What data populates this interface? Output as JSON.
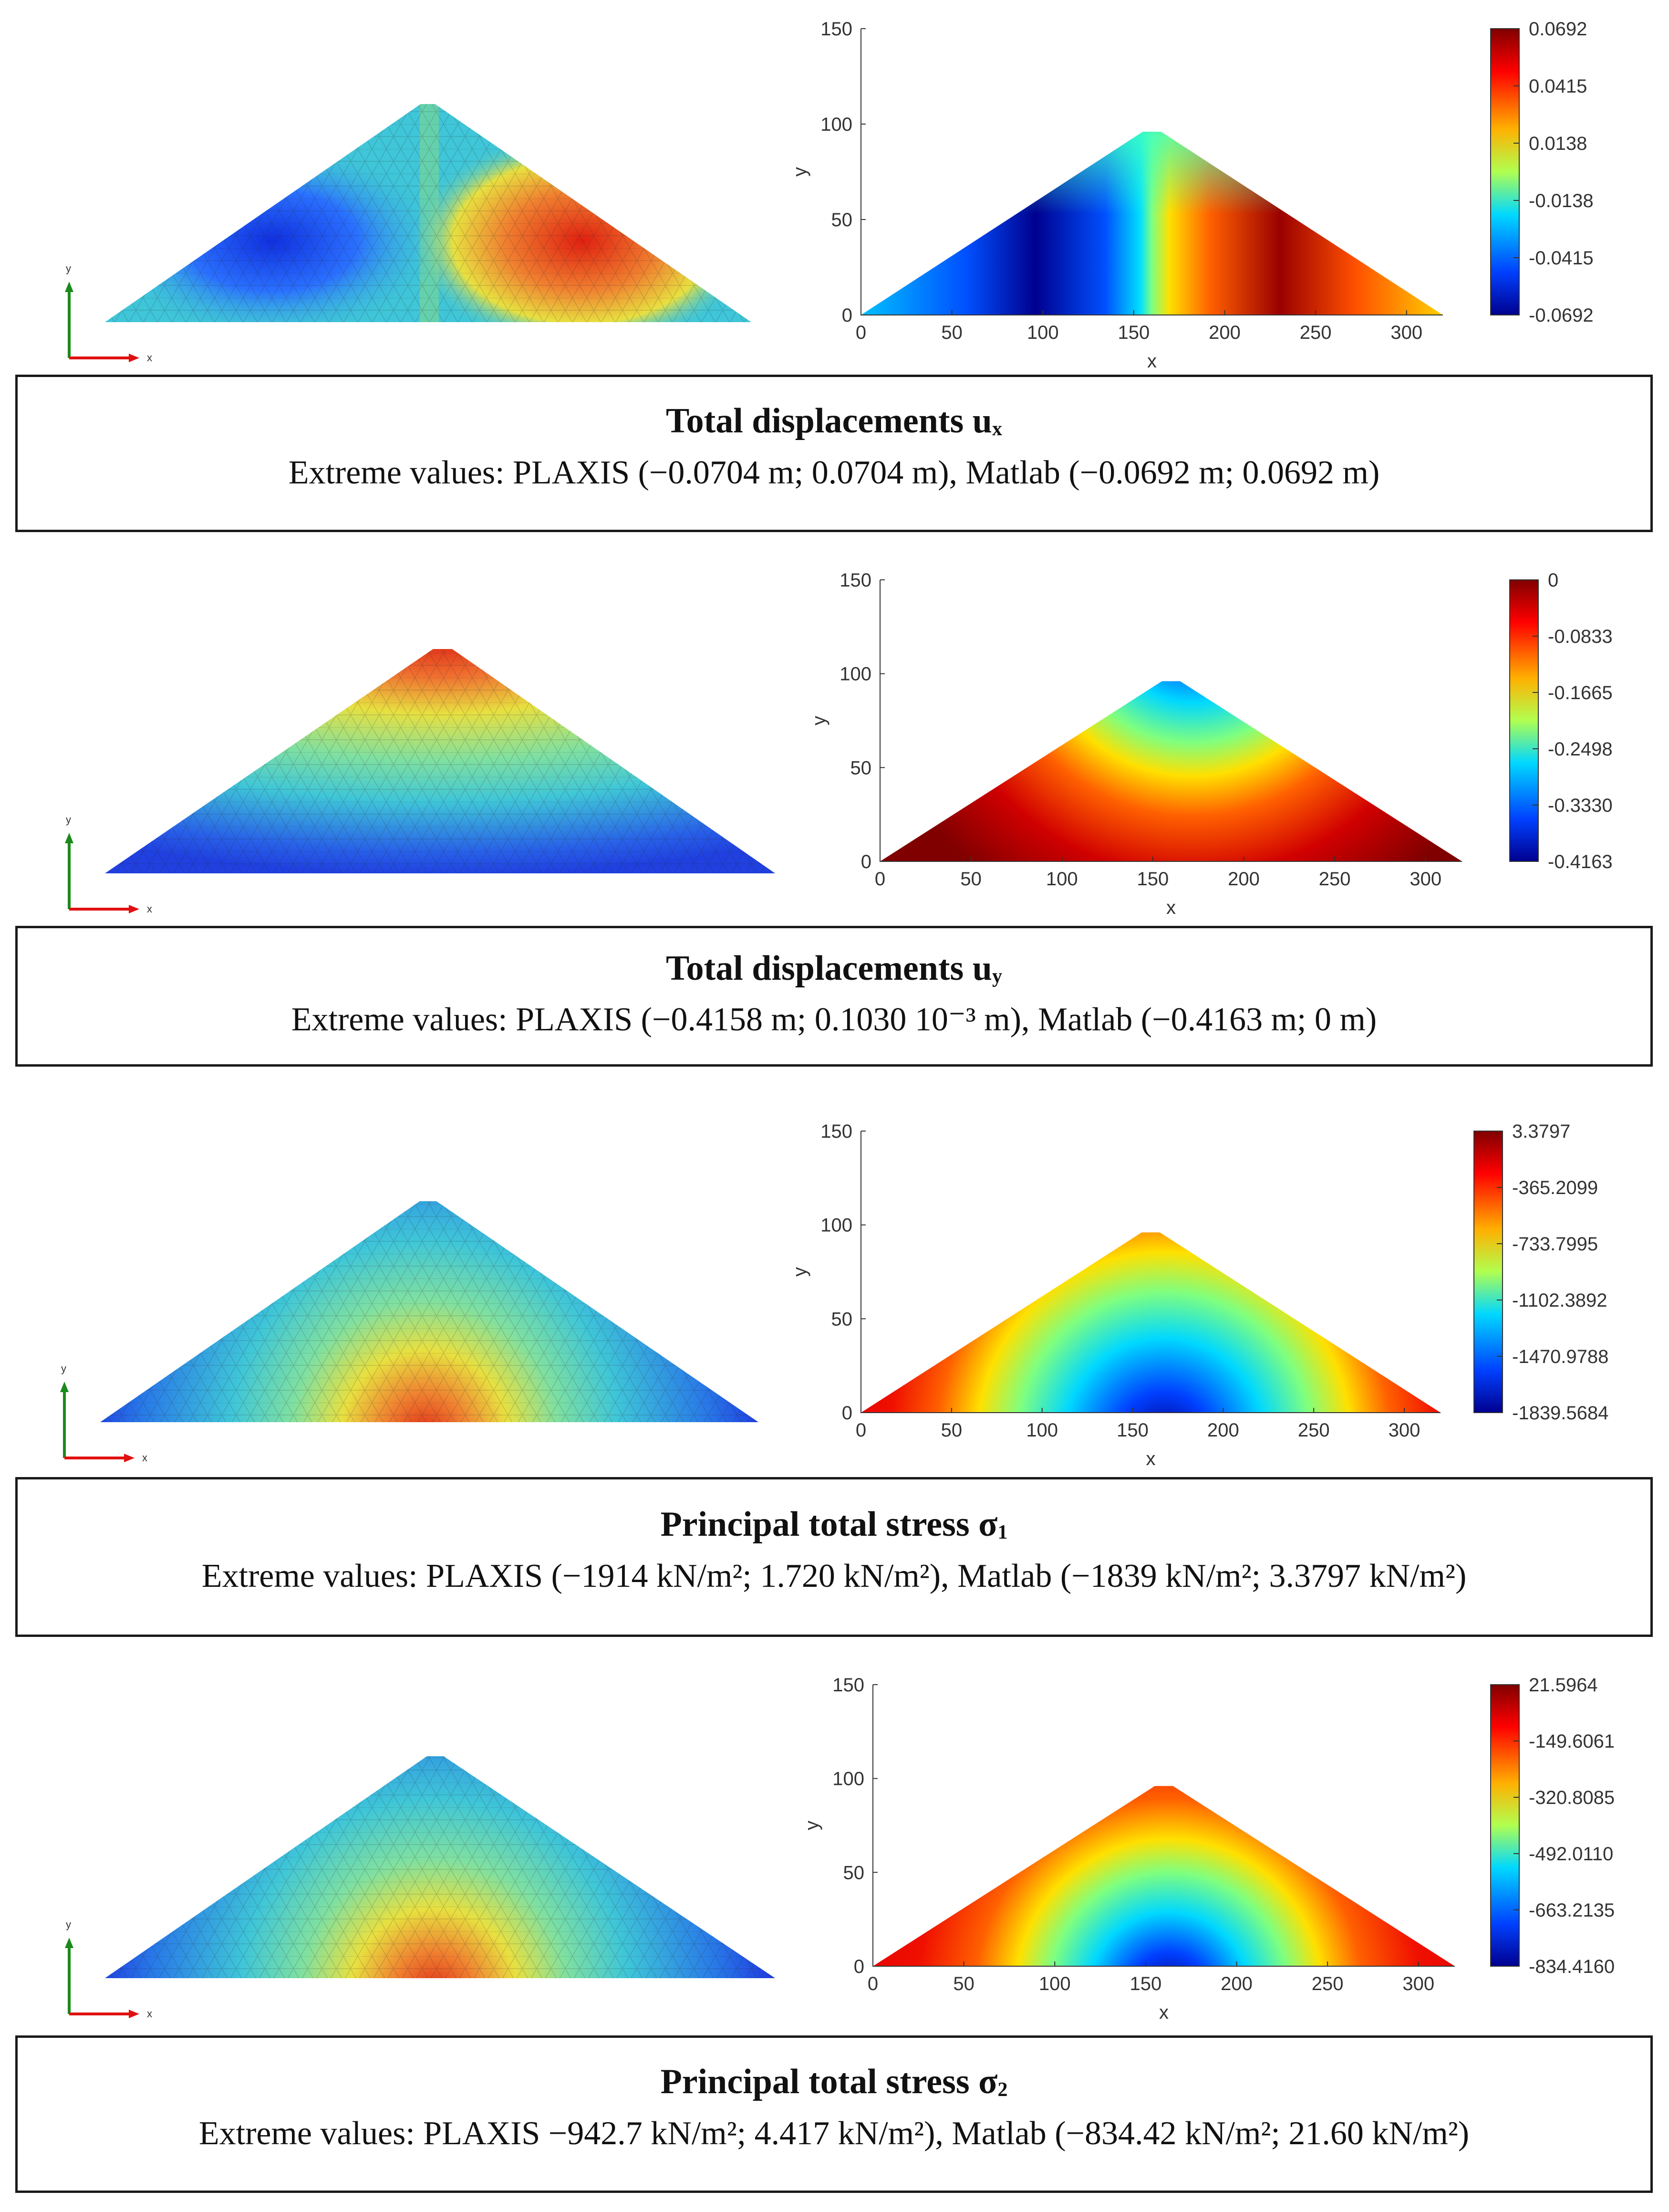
{
  "figure": {
    "colors": {
      "jet_dark_blue": "#00008f",
      "jet_blue": "#0050ff",
      "jet_cyan": "#00d8ff",
      "jet_green": "#7fff7f",
      "jet_yellow": "#ffe000",
      "jet_orange": "#ff6000",
      "jet_dark_red": "#800000",
      "plaxis_cyan": "#3fc6d8",
      "axis_green": "#1a8a1a",
      "axis_red": "#e01010"
    },
    "mesh_axis_labels": {
      "x": "x",
      "y": "y"
    },
    "panels": [
      {
        "id": "ux",
        "caption": {
          "title_main": "Total displacements u",
          "title_sub": "x",
          "text": "Extreme values: PLAXIS (−0.0704 m; 0.0704 m), Matlab (−0.0692 m; 0.0692 m)"
        }
      },
      {
        "id": "uy",
        "caption": {
          "title_main": "Total displacements u",
          "title_sub": "y",
          "text": "Extreme values: PLAXIS (−0.4158 m; 0.1030 10⁻³ m), Matlab (−0.4163 m; 0 m)"
        }
      },
      {
        "id": "s1",
        "caption": {
          "title_main": "Principal total stress σ",
          "title_sub": "1",
          "text": "Extreme values: PLAXIS (−1914 kN/m²; 1.720 kN/m²), Matlab (−1839 kN/m²; 3.3797 kN/m²)"
        }
      },
      {
        "id": "s2",
        "caption": {
          "title_main": "Principal total stress σ",
          "title_sub": "2",
          "text": "Extreme values: PLAXIS −942.7 kN/m²; 4.417 kN/m²), Matlab (−834.42 kN/m²; 21.60 kN/m²)"
        }
      }
    ]
  },
  "chart_data": [
    {
      "type": "heatmap",
      "title": "Total displacements ux",
      "xlabel": "x",
      "ylabel": "y",
      "xlim": [
        0,
        320
      ],
      "ylim": [
        0,
        150
      ],
      "xticks": [
        0,
        50,
        100,
        150,
        200,
        250,
        300
      ],
      "yticks": [
        0,
        50,
        100,
        150
      ],
      "domain_polygon": [
        [
          0,
          0
        ],
        [
          155,
          96
        ],
        [
          165,
          96
        ],
        [
          320,
          0
        ]
      ],
      "pattern": "antisymmetric",
      "extrema_locations": [
        [
          100,
          32
        ],
        [
          230,
          32
        ]
      ],
      "colorbar": {
        "min": -0.0692,
        "max": 0.0692,
        "ticks": [
          "0.0692",
          "0.0415",
          "0.0138",
          "-0.0138",
          "-0.0415",
          "-0.0692"
        ]
      }
    },
    {
      "type": "heatmap",
      "title": "Total displacements uy",
      "xlabel": "x",
      "ylabel": "y",
      "xlim": [
        0,
        320
      ],
      "ylim": [
        0,
        150
      ],
      "xticks": [
        0,
        50,
        100,
        150,
        200,
        250,
        300
      ],
      "yticks": [
        0,
        50,
        100,
        150
      ],
      "domain_polygon": [
        [
          0,
          0
        ],
        [
          155,
          96
        ],
        [
          165,
          96
        ],
        [
          320,
          0
        ]
      ],
      "pattern": "minimum at crest",
      "extrema_locations": [
        [
          160,
          85
        ]
      ],
      "colorbar": {
        "min": -0.4163,
        "max": 0,
        "ticks": [
          "0",
          "-0.0833",
          "-0.1665",
          "-0.2498",
          "-0.3330",
          "-0.4163"
        ]
      }
    },
    {
      "type": "heatmap",
      "title": "Principal total stress σ1",
      "xlabel": "x",
      "ylabel": "y",
      "xlim": [
        0,
        320
      ],
      "ylim": [
        0,
        150
      ],
      "xticks": [
        0,
        50,
        100,
        150,
        200,
        250,
        300
      ],
      "yticks": [
        0,
        50,
        100,
        150
      ],
      "domain_polygon": [
        [
          0,
          0
        ],
        [
          155,
          96
        ],
        [
          165,
          96
        ],
        [
          320,
          0
        ]
      ],
      "pattern": "minimum at base centre",
      "extrema_locations": [
        [
          160,
          0
        ]
      ],
      "colorbar": {
        "min": -1839.5684,
        "max": 3.3797,
        "ticks": [
          "3.3797",
          "-365.2099",
          "-733.7995",
          "-1102.3892",
          "-1470.9788",
          "-1839.5684"
        ]
      }
    },
    {
      "type": "heatmap",
      "title": "Principal total stress σ2",
      "xlabel": "x",
      "ylabel": "y",
      "xlim": [
        0,
        320
      ],
      "ylim": [
        0,
        150
      ],
      "xticks": [
        0,
        50,
        100,
        150,
        200,
        250,
        300
      ],
      "yticks": [
        0,
        50,
        100,
        150
      ],
      "domain_polygon": [
        [
          0,
          0
        ],
        [
          155,
          96
        ],
        [
          165,
          96
        ],
        [
          320,
          0
        ]
      ],
      "pattern": "minimum at base centre",
      "extrema_locations": [
        [
          160,
          0
        ]
      ],
      "colorbar": {
        "min": -834.416,
        "max": 21.5964,
        "ticks": [
          "21.5964",
          "-149.6061",
          "-320.8085",
          "-492.0110",
          "-663.2135",
          "-834.4160"
        ]
      }
    }
  ]
}
